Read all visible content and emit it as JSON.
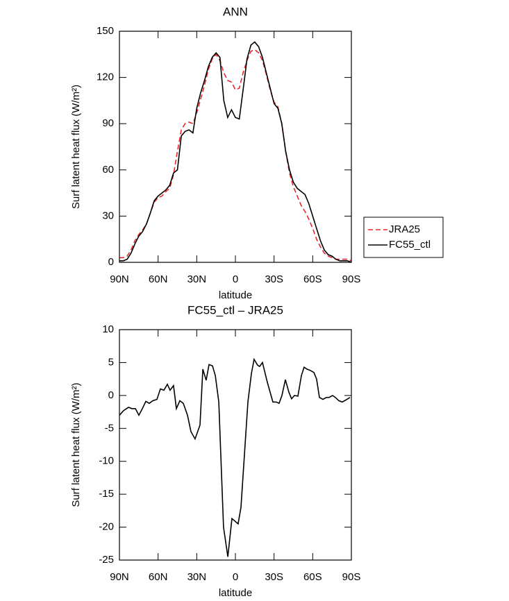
{
  "chart_data": [
    {
      "type": "line",
      "title": "ANN",
      "ylabel": "Surf latent heat flux (W/m²)",
      "xlabel": "latitude",
      "x": [
        90,
        87,
        84,
        81,
        78,
        75,
        72,
        69,
        66,
        63,
        60,
        57,
        54,
        51,
        48,
        45,
        42,
        39,
        36,
        33,
        30,
        27,
        24,
        21,
        18,
        15,
        12,
        9,
        6,
        3,
        0,
        -3,
        -6,
        -9,
        -12,
        -15,
        -18,
        -21,
        -24,
        -27,
        -30,
        -33,
        -36,
        -39,
        -42,
        -45,
        -48,
        -51,
        -54,
        -57,
        -60,
        -63,
        -66,
        -69,
        -72,
        -75,
        -78,
        -81,
        -84,
        -87,
        -90
      ],
      "series": [
        {
          "name": "JRA25",
          "color": "#e8262b",
          "dash": true,
          "values": [
            3,
            3,
            4,
            8,
            14,
            18,
            21,
            25,
            32,
            39,
            42,
            43,
            46,
            48,
            57,
            72,
            86,
            90,
            91,
            90,
            97,
            106,
            115,
            125,
            132,
            135,
            131,
            123,
            118,
            117,
            112,
            113,
            123,
            131,
            137,
            138,
            136,
            131,
            122,
            112,
            104,
            101,
            90,
            72,
            58,
            49,
            43,
            37,
            33,
            28,
            22,
            15,
            10,
            6,
            4,
            3,
            2,
            2,
            2,
            2,
            1
          ]
        },
        {
          "name": "FC55_ctl",
          "color": "#000000",
          "dash": false,
          "values": [
            1,
            1,
            2,
            6,
            12,
            17,
            20,
            25,
            32,
            40,
            43,
            45,
            47,
            50,
            58,
            60,
            82,
            85,
            86,
            84,
            100,
            110,
            118,
            127,
            133,
            136,
            133,
            105,
            94,
            99,
            94,
            93,
            112,
            132,
            141,
            143,
            140,
            133,
            123,
            113,
            103,
            100,
            90,
            72,
            60,
            52,
            48,
            46,
            44,
            38,
            30,
            22,
            14,
            8,
            5,
            4,
            2,
            1,
            1,
            1,
            0
          ]
        }
      ],
      "xlim": [
        90,
        -90
      ],
      "xticks": [
        {
          "value": 90,
          "label": "90N"
        },
        {
          "value": 60,
          "label": "60N"
        },
        {
          "value": 30,
          "label": "30N"
        },
        0,
        {
          "value": -30,
          "label": "30S"
        },
        {
          "value": -60,
          "label": "60S"
        },
        {
          "value": -90,
          "label": "90S"
        }
      ],
      "ylim": [
        0,
        150
      ],
      "yticks": [
        0,
        30,
        60,
        90,
        120,
        150
      ],
      "legend": "right"
    },
    {
      "type": "line",
      "title": "FC55_ctl – JRA25",
      "ylabel": "Surf latent heat flux (W/m²)",
      "xlabel": "latitude",
      "x": [
        90,
        86.8,
        83,
        80.3,
        77.6,
        74.9,
        72.2,
        69.5,
        66.8,
        64.1,
        60.9,
        58.2,
        55.5,
        52.8,
        50.7,
        48,
        45.8,
        43.1,
        40.4,
        37.2,
        34.5,
        31.3,
        27.5,
        25.3,
        22.7,
        20.5,
        17.8,
        15.6,
        12.9,
        9.2,
        5.9,
        2.7,
        -2.1,
        -4.3,
        -9.7,
        -12.4,
        -14.5,
        -17.2,
        -18.8,
        -21,
        -24.8,
        -29.1,
        -31.8,
        -33.9,
        -36.1,
        -38.8,
        -41.5,
        -43.6,
        -45.8,
        -48.5,
        -51.2,
        -53.3,
        -55.5,
        -58.2,
        -60.9,
        -63,
        -65.2,
        -67.9,
        -70.6,
        -72.7,
        -75.4,
        -77.6,
        -80.3,
        -82.9,
        -85.6,
        -88.9
      ],
      "series": [
        {
          "color": "#000000",
          "dash": false,
          "values": [
            -3,
            -2.3,
            -1.8,
            -2,
            -2,
            -3,
            -2,
            -0.9,
            -1.2,
            -0.8,
            -0.6,
            1,
            0.8,
            1.7,
            0.8,
            1.5,
            -2,
            -0.8,
            -1.2,
            -3,
            -5.5,
            -6.6,
            -4.5,
            4,
            2.3,
            4.7,
            4.5,
            3,
            -1,
            -20,
            -24.5,
            -18.7,
            -19.5,
            -17,
            -1,
            3.3,
            5.5,
            4.6,
            4.4,
            5,
            2,
            -1,
            -1,
            -1.2,
            0,
            2.4,
            0.5,
            -0.5,
            0,
            -0.1,
            3,
            4.3,
            4,
            3.8,
            3.5,
            2.5,
            -0.3,
            -0.6,
            -0.3,
            -0.3,
            0,
            -0.3,
            -0.8,
            -1,
            -0.7,
            -0.3
          ]
        }
      ],
      "xlim": [
        90,
        -90
      ],
      "xticks": [
        {
          "value": 90,
          "label": "90N"
        },
        {
          "value": 60,
          "label": "60N"
        },
        {
          "value": 30,
          "label": "30N"
        },
        0,
        {
          "value": -30,
          "label": "30S"
        },
        {
          "value": -60,
          "label": "60S"
        },
        {
          "value": -90,
          "label": "90S"
        }
      ],
      "ylim": [
        -25,
        10
      ],
      "yticks": [
        -25,
        -20,
        -15,
        -10,
        -5,
        0,
        5,
        10
      ]
    }
  ]
}
